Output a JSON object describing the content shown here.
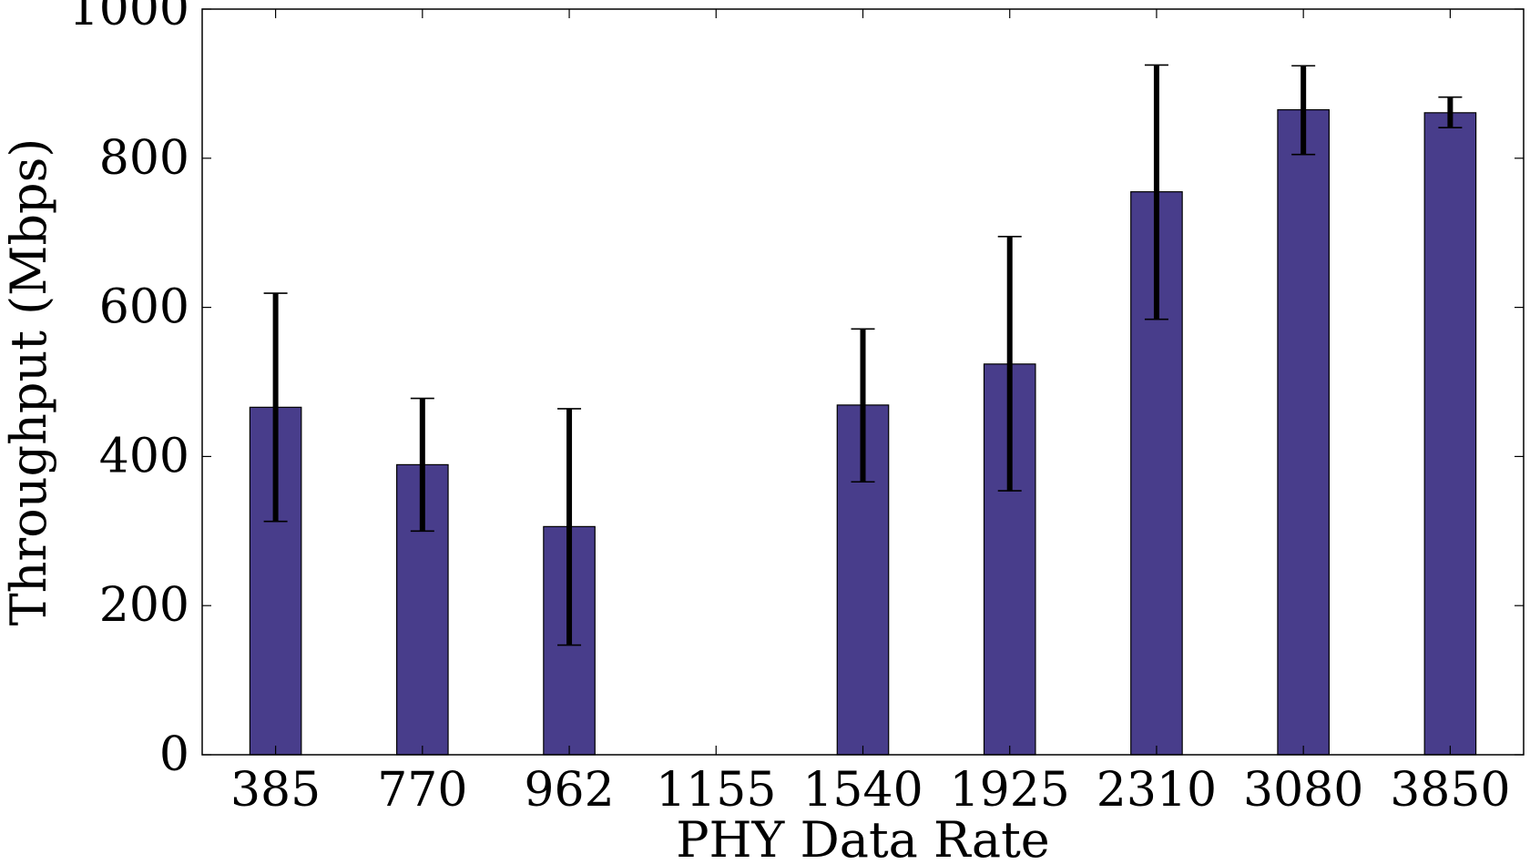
{
  "chart_data": {
    "type": "bar",
    "xlabel": "PHY Data Rate",
    "ylabel": "Throughput (Mbps)",
    "categories": [
      "385",
      "770",
      "962",
      "1155",
      "1540",
      "1925",
      "2310",
      "3080",
      "3850"
    ],
    "values": [
      466,
      389,
      306,
      0,
      469,
      524,
      755,
      865,
      861
    ],
    "errors": [
      [
        313,
        619
      ],
      [
        300,
        478
      ],
      [
        147,
        464
      ],
      null,
      [
        366,
        571
      ],
      [
        354,
        695
      ],
      [
        584,
        925
      ],
      [
        805,
        924
      ],
      [
        841,
        882
      ]
    ],
    "ylim": [
      0,
      1000
    ],
    "yticks": [
      0,
      200,
      400,
      600,
      800,
      1000
    ],
    "grid": false,
    "legend": "none",
    "bar_color": "#483D8B",
    "error_color": "#000000"
  }
}
